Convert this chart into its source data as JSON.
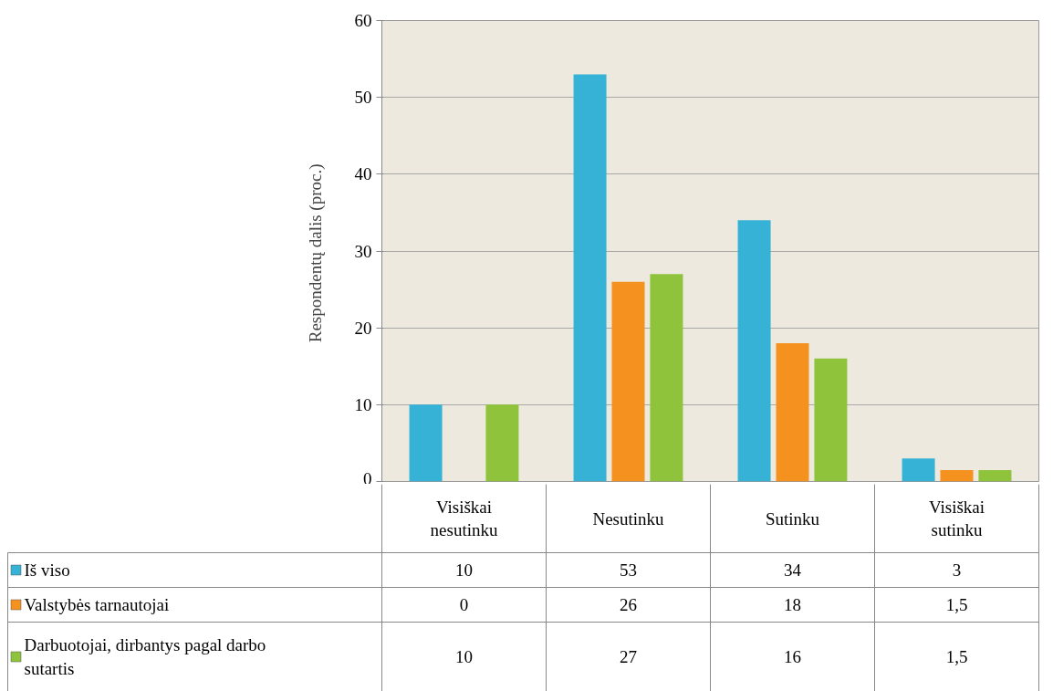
{
  "chart_data": {
    "type": "bar",
    "ylabel": "Respondentų dalis  (proc.)",
    "categories": [
      "Visiškai nesutinku",
      "Nesutinku",
      "Sutinku",
      "Visiškai sutinku"
    ],
    "series": [
      {
        "name": "Iš viso",
        "color": "#35b2d6",
        "values": [
          10,
          53,
          34,
          3
        ],
        "value_labels": [
          "10",
          "53",
          "34",
          "3"
        ]
      },
      {
        "name": "Valstybės tarnautojai",
        "color": "#f5911e",
        "values": [
          0,
          26,
          18,
          1.5
        ],
        "value_labels": [
          "0",
          "26",
          "18",
          "1,5"
        ]
      },
      {
        "name": "Darbuotojai, dirbantys pagal darbo sutartis",
        "color": "#8fc33c",
        "values": [
          10,
          27,
          16,
          1.5
        ],
        "value_labels": [
          "10",
          "27",
          "16",
          "1,5"
        ]
      }
    ],
    "ylim": [
      0,
      60
    ],
    "yticks": [
      0,
      10,
      20,
      30,
      40,
      50,
      60
    ],
    "grid": "y",
    "legend": "bottom left"
  }
}
